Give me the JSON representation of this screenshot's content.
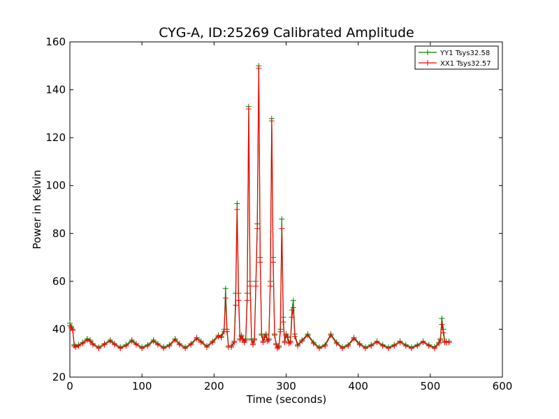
{
  "chart_data": {
    "type": "line",
    "title": "CYG-A, ID:25269 Calibrated Amplitude",
    "xlabel": "Time (seconds)",
    "ylabel": "Power in Kelvin",
    "xlim": [
      0,
      600
    ],
    "ylim": [
      20,
      160
    ],
    "xticks": [
      0,
      100,
      200,
      300,
      400,
      500,
      600
    ],
    "yticks": [
      20,
      40,
      60,
      80,
      100,
      120,
      140,
      160
    ],
    "grid": false,
    "legend_position": "top-right",
    "marker": "plus",
    "series": [
      {
        "name": "YY1 Tsys32.58",
        "color": "#008000",
        "x": [
          0,
          2,
          4,
          6,
          8,
          12,
          18,
          24,
          28,
          32,
          40,
          48,
          56,
          62,
          70,
          78,
          86,
          92,
          100,
          108,
          116,
          122,
          130,
          138,
          146,
          152,
          160,
          168,
          176,
          182,
          190,
          198,
          206,
          210,
          214,
          216,
          218,
          220,
          224,
          228,
          230,
          232,
          234,
          236,
          238,
          240,
          242,
          244,
          246,
          248,
          250,
          252,
          254,
          256,
          258,
          260,
          262,
          264,
          266,
          268,
          270,
          272,
          274,
          276,
          278,
          280,
          282,
          284,
          286,
          288,
          290,
          292,
          294,
          296,
          298,
          300,
          302,
          304,
          306,
          308,
          310,
          312,
          316,
          322,
          330,
          338,
          346,
          354,
          362,
          370,
          378,
          386,
          394,
          402,
          410,
          418,
          426,
          434,
          442,
          450,
          458,
          466,
          474,
          482,
          490,
          498,
          506,
          512,
          514,
          516,
          518,
          520,
          522,
          526
        ],
        "y": [
          42.5,
          41,
          40,
          33.5,
          33,
          33.5,
          34.5,
          36,
          35.5,
          34,
          32.5,
          34,
          35.5,
          34,
          32.5,
          33.5,
          35.5,
          34,
          32.5,
          33.5,
          35.5,
          34,
          32.5,
          33.5,
          36,
          34,
          32.5,
          34,
          36.5,
          35,
          33,
          35,
          37.5,
          37,
          40,
          57,
          40,
          33,
          33,
          35,
          55,
          92.5,
          55,
          36,
          37.5,
          36,
          35,
          36,
          55,
          133,
          60,
          36,
          34,
          36,
          60,
          84,
          150,
          70,
          38,
          35,
          37,
          38,
          35.5,
          36,
          60,
          128,
          70,
          38,
          34,
          32.5,
          33,
          40,
          86,
          45,
          35,
          38,
          37,
          34.5,
          35,
          48,
          52,
          38,
          33.5,
          35.5,
          38,
          34.5,
          32.5,
          33.5,
          38,
          34.5,
          32.5,
          33.5,
          36.5,
          34,
          32.5,
          33.5,
          35,
          33.5,
          32.5,
          33.5,
          35,
          33.5,
          32.5,
          33.5,
          35,
          33.5,
          32.5,
          34.5,
          36,
          44.5,
          40,
          35,
          35,
          35
        ]
      },
      {
        "name": "XX1 Tsys32.57",
        "color": "#ff0000",
        "x": [
          0,
          2,
          4,
          6,
          8,
          12,
          18,
          24,
          28,
          32,
          40,
          48,
          56,
          62,
          70,
          78,
          86,
          92,
          100,
          108,
          116,
          122,
          130,
          138,
          146,
          152,
          160,
          168,
          176,
          182,
          190,
          198,
          206,
          210,
          214,
          216,
          218,
          220,
          224,
          228,
          230,
          232,
          234,
          236,
          238,
          240,
          242,
          244,
          246,
          248,
          250,
          252,
          254,
          256,
          258,
          260,
          262,
          264,
          266,
          268,
          270,
          272,
          274,
          276,
          278,
          280,
          282,
          284,
          286,
          288,
          290,
          292,
          294,
          296,
          298,
          300,
          302,
          304,
          306,
          308,
          310,
          312,
          316,
          322,
          330,
          338,
          346,
          354,
          362,
          370,
          378,
          386,
          394,
          402,
          410,
          418,
          426,
          434,
          442,
          450,
          458,
          466,
          474,
          482,
          490,
          498,
          506,
          512,
          514,
          516,
          518,
          520,
          522,
          526
        ],
        "y": [
          41.5,
          40.5,
          39.5,
          33,
          32.5,
          33,
          34,
          35.5,
          35,
          33.5,
          32,
          33.5,
          35,
          33.5,
          32,
          33,
          35,
          33.5,
          32,
          33,
          35,
          33.5,
          32,
          33,
          35.5,
          33.5,
          32,
          33.5,
          36,
          34.5,
          32.5,
          34.5,
          37,
          36.5,
          39,
          53,
          39,
          32.5,
          32.5,
          34.5,
          50,
          90,
          52,
          35.5,
          37,
          35.5,
          34.5,
          35.5,
          52,
          132,
          58,
          35.5,
          33.5,
          35.5,
          58,
          82,
          149,
          68,
          37.5,
          34.5,
          36.5,
          37.5,
          35,
          35.5,
          58,
          127,
          68,
          37.5,
          33.5,
          32,
          32.5,
          39,
          82,
          43,
          34.5,
          37.5,
          36.5,
          34,
          34.5,
          45,
          49,
          37,
          33,
          35,
          37.5,
          34,
          32,
          33,
          37.5,
          34,
          32,
          33,
          36,
          33.5,
          32,
          33,
          34.5,
          33,
          32,
          33,
          34.5,
          33,
          32,
          33,
          34.5,
          33,
          32,
          34,
          35.5,
          42,
          38.5,
          34.5,
          34.5,
          34.5
        ]
      }
    ]
  }
}
